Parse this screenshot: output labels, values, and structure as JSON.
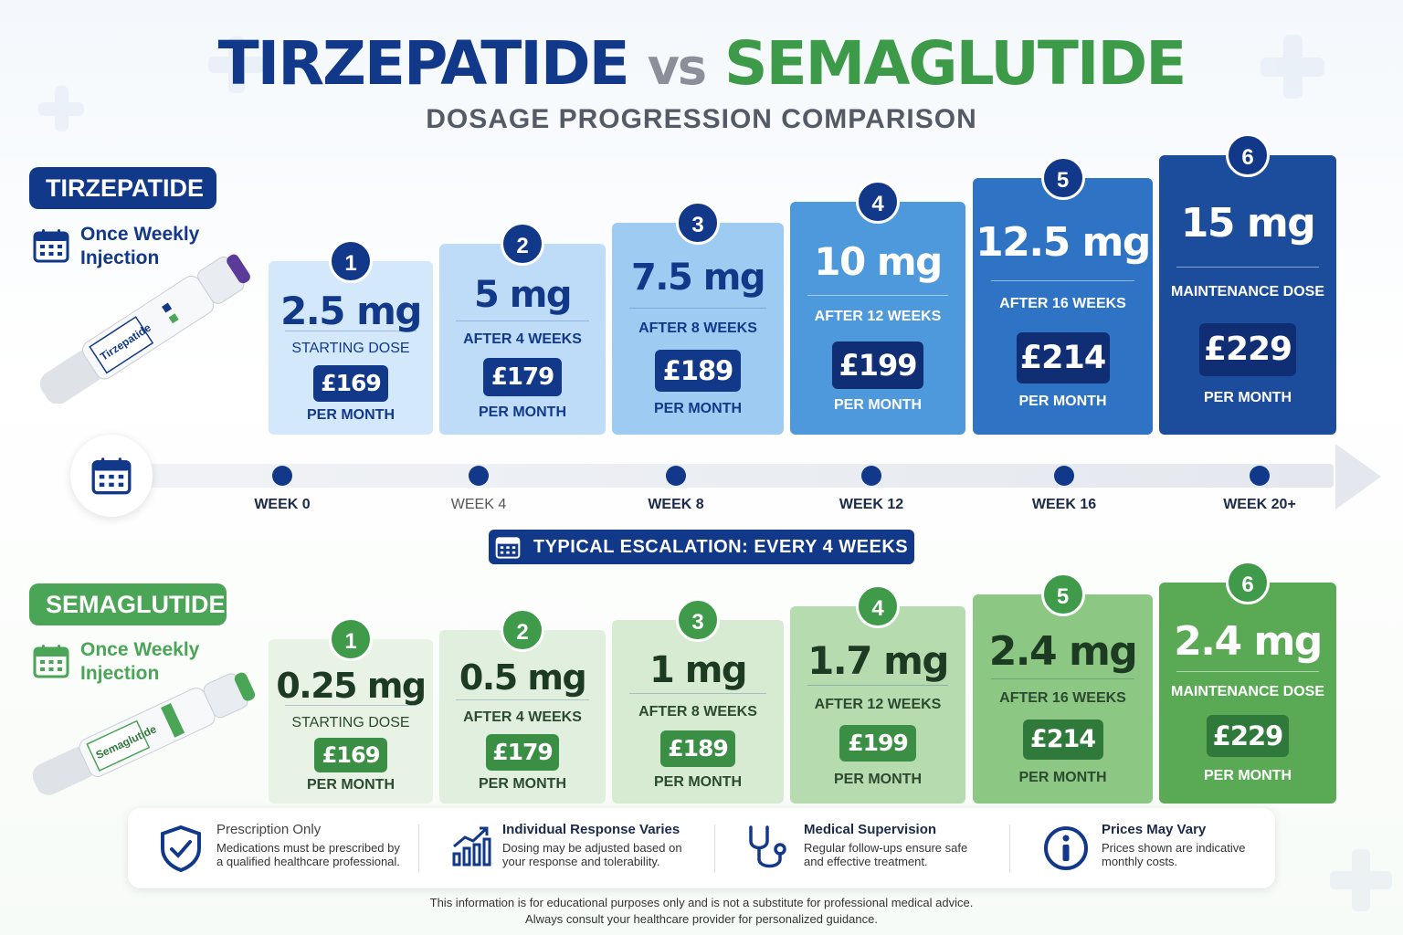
{
  "title": {
    "part1": "TIRZEPATIDE",
    "vs": "vs",
    "part2": "SEMAGLUTIDE"
  },
  "subtitle": "DOSAGE PROGRESSION COMPARISON",
  "colors": {
    "navy": "#12388a",
    "green": "#4aa556"
  },
  "tirzepatide": {
    "label": "TIRZEPATIDE",
    "frequency": "Once Weekly Injection",
    "pen_text": "Tirzepatide",
    "steps": [
      {
        "step": "1",
        "dose": "2.5 mg",
        "when": "STARTING DOSE",
        "price": "£169",
        "per": "PER MONTH"
      },
      {
        "step": "2",
        "dose": "5 mg",
        "when": "AFTER 4 WEEKS",
        "price": "£179",
        "per": "PER MONTH"
      },
      {
        "step": "3",
        "dose": "7.5 mg",
        "when": "AFTER 8 WEEKS",
        "price": "£189",
        "per": "PER MONTH"
      },
      {
        "step": "4",
        "dose": "10 mg",
        "when": "AFTER 12 WEEKS",
        "price": "£199",
        "per": "PER MONTH"
      },
      {
        "step": "5",
        "dose": "12.5 mg",
        "when": "AFTER 16 WEEKS",
        "price": "£214",
        "per": "PER MONTH"
      },
      {
        "step": "6",
        "dose": "15 mg",
        "when": "MAINTENANCE DOSE",
        "price": "£229",
        "per": "PER MONTH"
      }
    ]
  },
  "timeline": {
    "weeks": [
      "WEEK 0",
      "WEEK 4",
      "WEEK 8",
      "WEEK 12",
      "WEEK 16",
      "WEEK 20+"
    ],
    "escalation": "TYPICAL ESCALATION: EVERY 4 WEEKS"
  },
  "semaglutide": {
    "label": "SEMAGLUTIDE",
    "frequency": "Once Weekly Injection",
    "pen_text": "Semaglutide",
    "steps": [
      {
        "step": "1",
        "dose": "0.25 mg",
        "when": "STARTING DOSE",
        "price": "£169",
        "per": "PER MONTH"
      },
      {
        "step": "2",
        "dose": "0.5 mg",
        "when": "AFTER 4 WEEKS",
        "price": "£179",
        "per": "PER MONTH"
      },
      {
        "step": "3",
        "dose": "1 mg",
        "when": "AFTER 8 WEEKS",
        "price": "£189",
        "per": "PER MONTH"
      },
      {
        "step": "4",
        "dose": "1.7 mg",
        "when": "AFTER 12 WEEKS",
        "price": "£199",
        "per": "PER MONTH"
      },
      {
        "step": "5",
        "dose": "2.4 mg",
        "when": "AFTER 16 WEEKS",
        "price": "£214",
        "per": "PER MONTH"
      },
      {
        "step": "6",
        "dose": "2.4 mg",
        "when": "MAINTENANCE DOSE",
        "price": "£229",
        "per": "PER MONTH"
      }
    ]
  },
  "info": [
    {
      "icon": "shield-check-icon",
      "title": "Prescription Only",
      "desc": "Medications must be prescribed by a qualified healthcare professional."
    },
    {
      "icon": "chart-up-icon",
      "title": "Individual Response Varies",
      "desc": "Dosing may be adjusted based on your response and tolerability."
    },
    {
      "icon": "stethoscope-icon",
      "title": "Medical Supervision",
      "desc": "Regular follow-ups ensure safe and effective treatment."
    },
    {
      "icon": "info-icon",
      "title": "Prices May Vary",
      "desc": "Prices shown are indicative monthly costs."
    }
  ],
  "footer": {
    "line1": "This information is for educational purposes only and is not a substitute for professional medical advice.",
    "line2": "Always consult your healthcare provider for personalized guidance."
  }
}
